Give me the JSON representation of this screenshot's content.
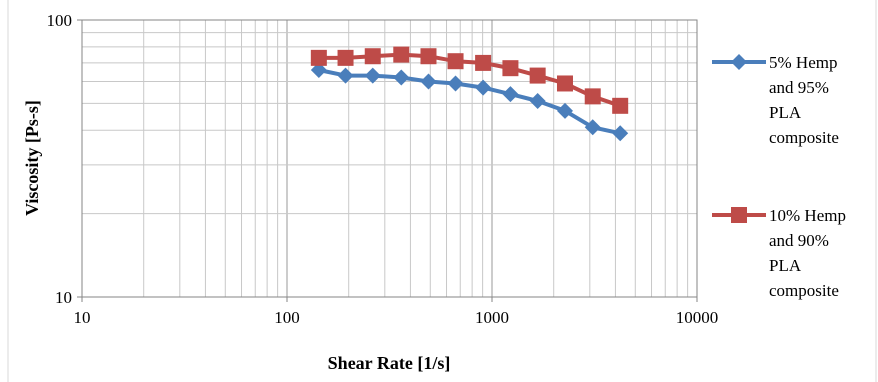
{
  "chart_data": {
    "type": "line",
    "title": "",
    "xlabel": "Shear Rate [1/s]",
    "ylabel": "Viscosity [Ps-s]",
    "x_scale": "log",
    "y_scale": "log",
    "xlim": [
      10,
      10000
    ],
    "ylim": [
      10,
      100
    ],
    "x_ticks": [
      "10",
      "100",
      "1000",
      "10000"
    ],
    "y_ticks": [
      "10",
      "100"
    ],
    "grid": true,
    "legend_position": "right",
    "series": [
      {
        "name_lines": [
          "5% Hemp",
          "and 95%",
          "PLA",
          "composite"
        ],
        "color": "#4A7EBB",
        "marker": "diamond",
        "x": [
          143,
          193,
          262,
          361,
          490,
          664,
          905,
          1230,
          1670,
          2270,
          3100,
          4220
        ],
        "y": [
          66,
          63,
          63,
          62,
          60,
          59,
          57,
          54,
          51,
          47,
          41,
          39
        ]
      },
      {
        "name_lines": [
          "10% Hemp",
          "and 90%",
          "PLA",
          "composite"
        ],
        "color": "#BE4B48",
        "marker": "square",
        "x": [
          143,
          193,
          262,
          361,
          490,
          664,
          905,
          1230,
          1670,
          2270,
          3100,
          4220
        ],
        "y": [
          73,
          73,
          74,
          75,
          74,
          71,
          70,
          67,
          63,
          59,
          53,
          49
        ]
      }
    ]
  }
}
